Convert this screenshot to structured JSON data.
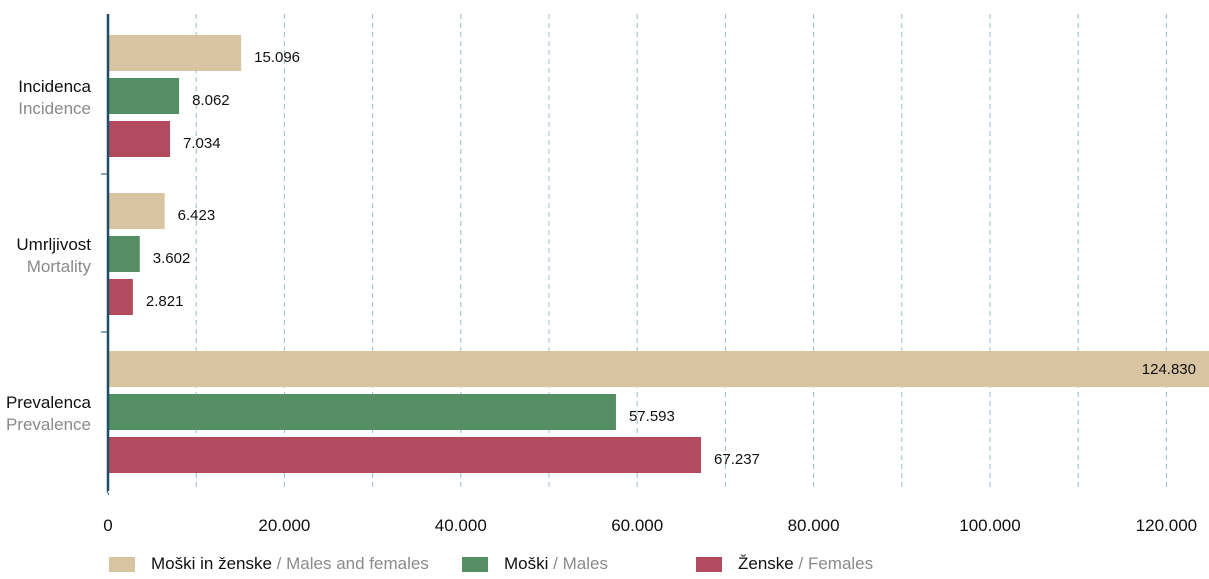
{
  "chart_data": {
    "type": "bar",
    "orientation": "horizontal",
    "categories": [
      {
        "label": "Incidenca",
        "sublabel": "Incidence"
      },
      {
        "label": "Umrljivost",
        "sublabel": "Mortality"
      },
      {
        "label": "Prevalenca",
        "sublabel": "Prevalence"
      }
    ],
    "series": [
      {
        "name": "Moški in ženske",
        "name_en": "Males and females",
        "color": "#d9c4a1",
        "values": [
          15096,
          6423,
          124830
        ],
        "labels": [
          "15.096",
          "6.423",
          "124.830"
        ]
      },
      {
        "name": "Moški",
        "name_en": "Males",
        "color": "#558e63",
        "values": [
          8062,
          3602,
          57593
        ],
        "labels": [
          "8.062",
          "3.602",
          "57.593"
        ]
      },
      {
        "name": "Ženske",
        "name_en": "Females",
        "color": "#b34b60",
        "values": [
          7034,
          2821,
          67237
        ],
        "labels": [
          "7.034",
          "2.821",
          "67.237"
        ]
      }
    ],
    "xlim": [
      0,
      124830
    ],
    "xticks": [
      {
        "value": 0,
        "label": "0"
      },
      {
        "value": 20000,
        "label": "20.000"
      },
      {
        "value": 40000,
        "label": "40.000"
      },
      {
        "value": 60000,
        "label": "60.000"
      },
      {
        "value": 80000,
        "label": "80.000"
      },
      {
        "value": 100000,
        "label": "100.000"
      },
      {
        "value": 120000,
        "label": "120.000"
      }
    ],
    "grid": true,
    "grid_style": "dashed vertical every 10.000",
    "legend_position": "bottom"
  },
  "legend": {
    "separator": "/",
    "items": [
      {
        "label": "Moški in ženske",
        "label_en": "Males and females"
      },
      {
        "label": "Moški",
        "label_en": "Males"
      },
      {
        "label": "Ženske",
        "label_en": "Females"
      }
    ]
  }
}
